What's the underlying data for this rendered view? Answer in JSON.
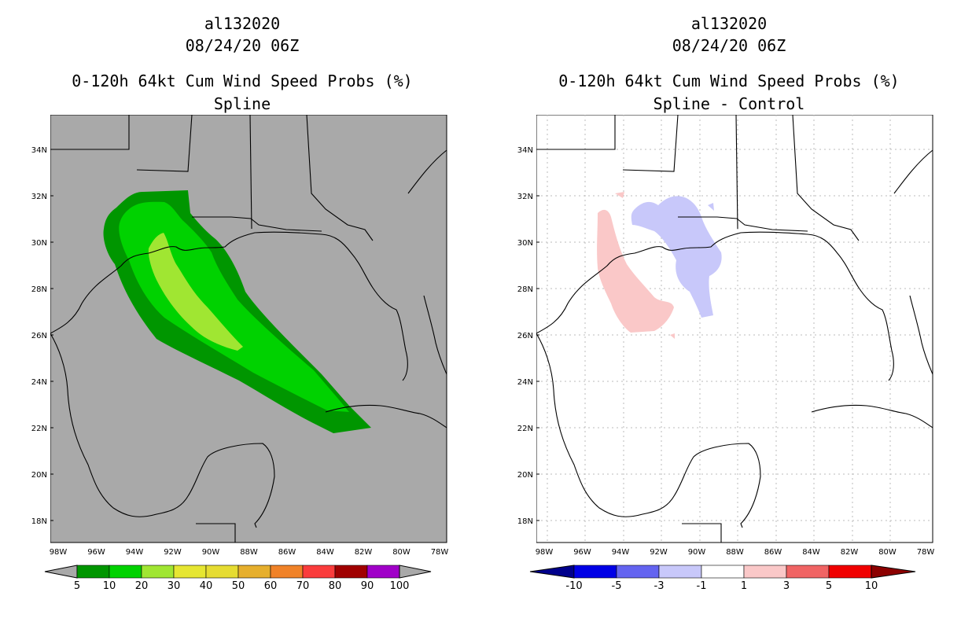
{
  "left_panel": {
    "storm_id": "al132020",
    "datetime": "08/24/20 06Z",
    "product": "0-120h 64kt Cum Wind Speed Probs (%)",
    "method": "Spline",
    "background_color": "#a9a9a9",
    "colorbar": {
      "labels": [
        "5",
        "10",
        "20",
        "30",
        "40",
        "50",
        "60",
        "70",
        "80",
        "90",
        "100"
      ],
      "colors": [
        "#009600",
        "#00d200",
        "#a0e632",
        "#e6e632",
        "#e6dc32",
        "#e6af2d",
        "#f08228",
        "#fa3c3c",
        "#a00000",
        "#a000c8"
      ],
      "arrow_color": "#a9a9a9"
    }
  },
  "right_panel": {
    "storm_id": "al132020",
    "datetime": "08/24/20 06Z",
    "product": "0-120h 64kt Cum Wind Speed Probs (%)",
    "method": "Spline - Control",
    "background_color": "#ffffff",
    "colorbar": {
      "labels": [
        "-10",
        "-5",
        "-3",
        "-1",
        "1",
        "3",
        "5",
        "10"
      ],
      "colors": [
        "#0000e6",
        "#6464f0",
        "#c8c8fa",
        "#ffffff",
        "#fac8c8",
        "#f06464",
        "#f00000"
      ],
      "left_arrow_color": "#00008c",
      "right_arrow_color": "#8c0000"
    }
  },
  "axes": {
    "lat_labels": [
      "34N",
      "32N",
      "30N",
      "28N",
      "26N",
      "24N",
      "22N",
      "20N",
      "18N"
    ],
    "lon_labels": [
      "98W",
      "96W",
      "94W",
      "92W",
      "90W",
      "88W",
      "86W",
      "84W",
      "82W",
      "80W",
      "78W"
    ]
  }
}
